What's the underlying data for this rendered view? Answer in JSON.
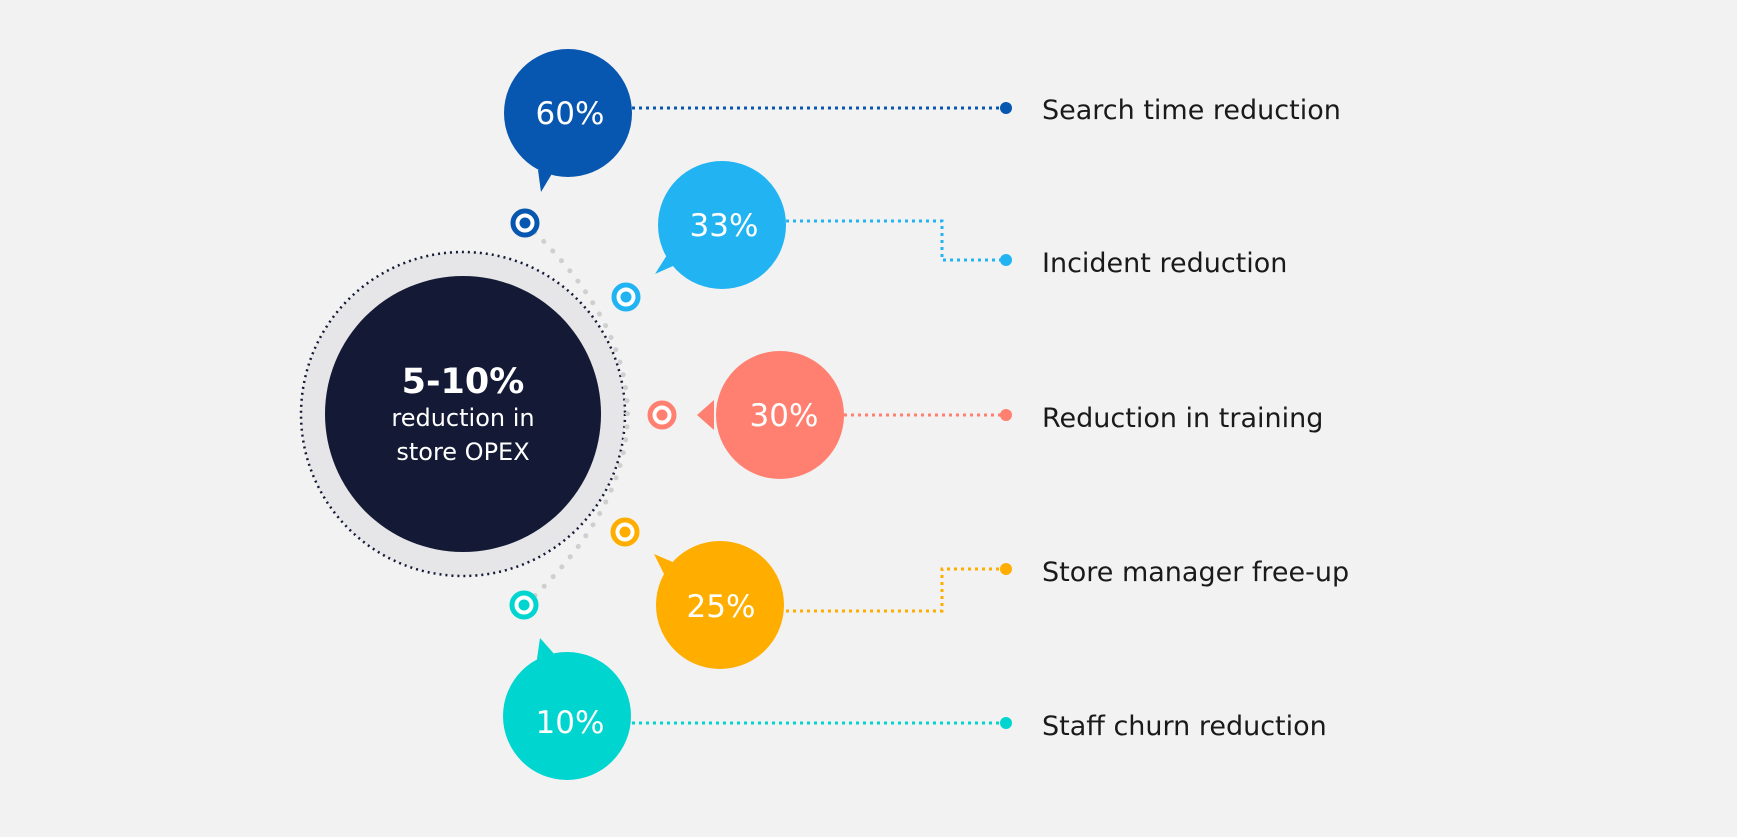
{
  "hub": {
    "headline": "5-10%",
    "line1": "reduction in",
    "line2": "store OPEX",
    "color": "#141a35"
  },
  "items": [
    {
      "value": "60%",
      "label": "Search time reduction",
      "color": "#0756b0"
    },
    {
      "value": "33%",
      "label": "Incident reduction",
      "color": "#22b4f2"
    },
    {
      "value": "30%",
      "label": "Reduction in training",
      "color": "#ff8070"
    },
    {
      "value": "25%",
      "label": "Store manager free-up",
      "color": "#ffae00"
    },
    {
      "value": "10%",
      "label": "Staff churn reduction",
      "color": "#00d5d0"
    }
  ]
}
